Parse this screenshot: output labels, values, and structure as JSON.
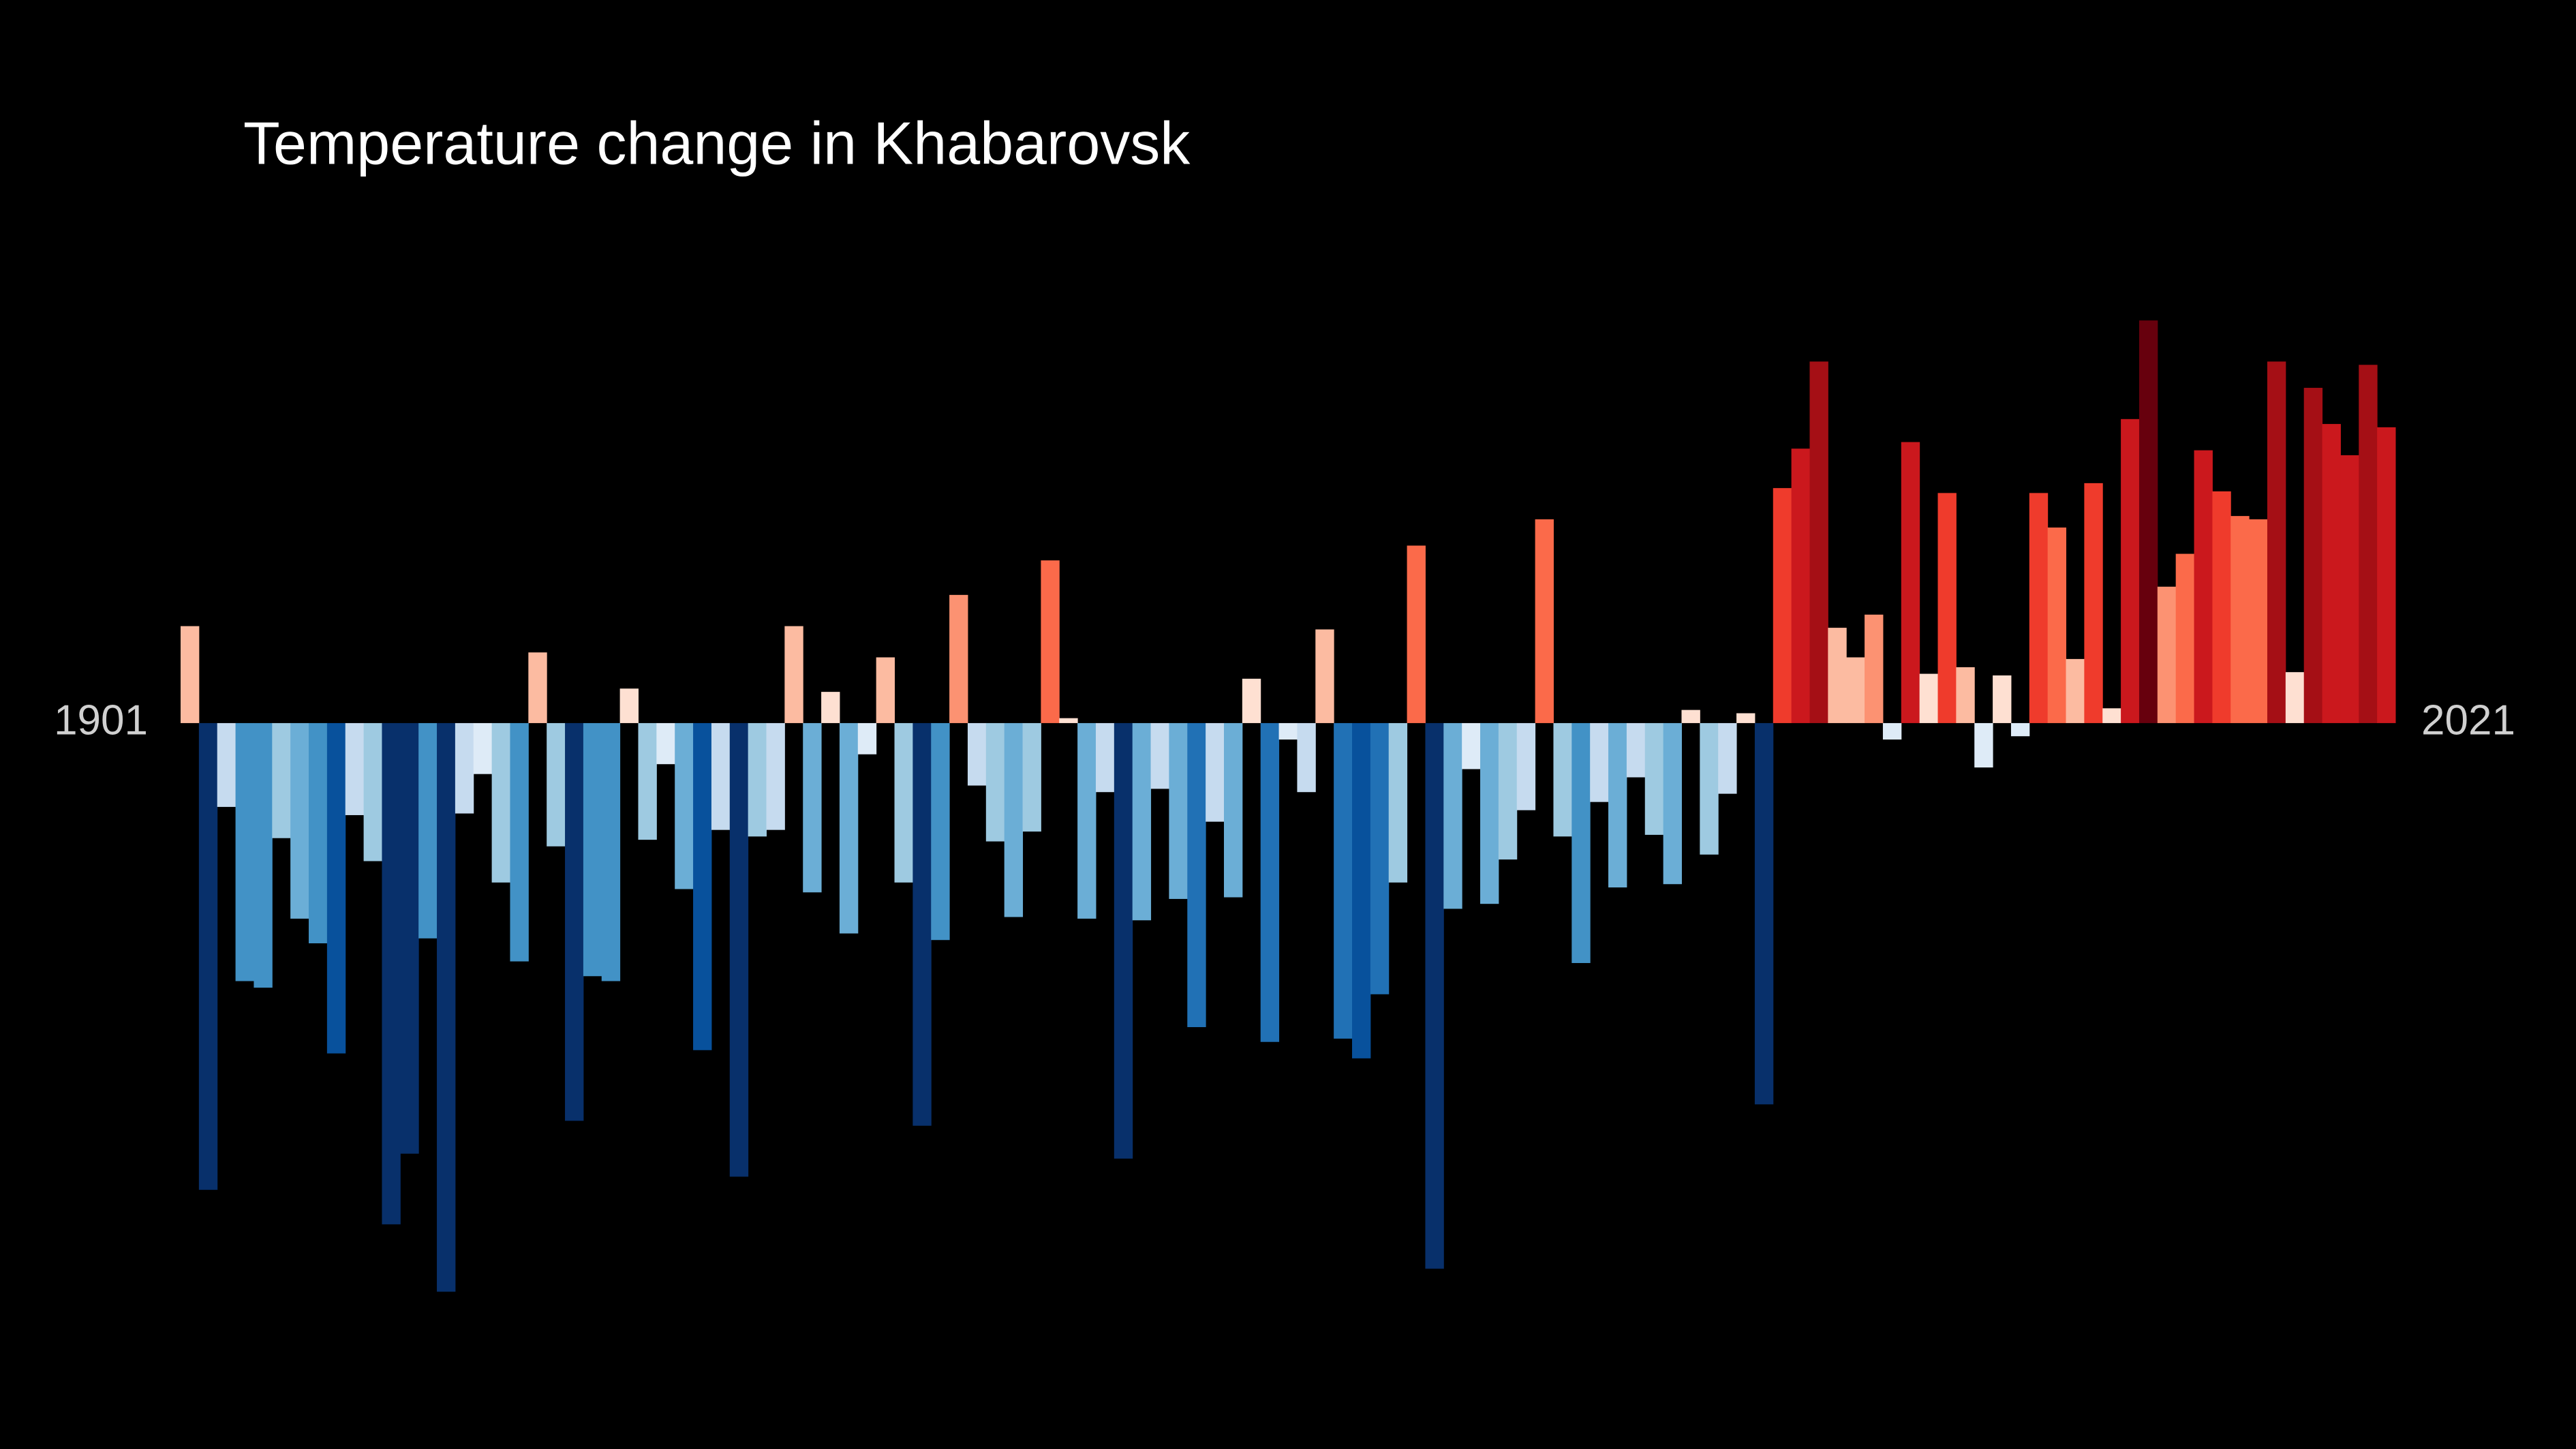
{
  "chart_data": {
    "type": "bar",
    "title": "Temperature change in Khabarovsk",
    "categories": [
      "1901",
      null,
      null,
      null,
      null,
      null,
      null,
      null,
      null,
      null,
      null,
      null,
      null,
      null,
      null,
      null,
      null,
      null,
      null,
      null,
      null,
      null,
      null,
      null,
      null,
      null,
      null,
      null,
      null,
      null,
      null,
      null,
      null,
      null,
      null,
      null,
      null,
      null,
      null,
      null,
      null,
      null,
      null,
      null,
      null,
      null,
      null,
      null,
      null,
      null,
      null,
      null,
      null,
      null,
      null,
      null,
      null,
      null,
      null,
      null,
      null,
      null,
      null,
      null,
      null,
      null,
      null,
      null,
      null,
      null,
      null,
      null,
      null,
      null,
      null,
      null,
      null,
      null,
      null,
      null,
      null,
      null,
      null,
      null,
      null,
      null,
      null,
      null,
      null,
      null,
      null,
      null,
      null,
      null,
      null,
      null,
      null,
      null,
      null,
      null,
      null,
      null,
      null,
      null,
      null,
      null,
      null,
      null,
      null,
      null,
      null,
      null,
      null,
      null,
      null,
      null,
      null,
      null,
      null,
      null,
      "2021"
    ],
    "values": [
      0.59,
      -2.84,
      -0.51,
      -1.57,
      -1.61,
      -0.7,
      -1.19,
      -1.34,
      -2.01,
      -0.56,
      -0.84,
      -3.05,
      -2.62,
      -1.31,
      -3.46,
      -0.55,
      -0.31,
      -0.97,
      -1.45,
      0.43,
      -0.75,
      -2.42,
      -1.54,
      -1.57,
      0.21,
      -0.71,
      -0.25,
      -1.01,
      -1.99,
      -0.65,
      -2.76,
      -0.69,
      -0.65,
      0.59,
      -1.03,
      0.19,
      -1.28,
      -0.19,
      0.4,
      -0.97,
      -2.45,
      -1.32,
      0.78,
      -0.38,
      -0.72,
      -1.18,
      -0.66,
      0.99,
      0.03,
      -1.19,
      -0.42,
      -2.65,
      -1.2,
      -0.4,
      -1.07,
      -1.85,
      -0.6,
      -1.06,
      0.27,
      -1.94,
      -0.1,
      -0.42,
      0.57,
      -1.92,
      -2.04,
      -1.65,
      -0.97,
      1.08,
      -3.32,
      -1.13,
      -0.28,
      -1.1,
      -0.83,
      -0.53,
      1.24,
      -0.69,
      -1.46,
      -0.48,
      -1.0,
      -0.33,
      -0.68,
      -0.98,
      0.08,
      -0.8,
      -0.43,
      0.06,
      -2.32,
      1.43,
      1.67,
      2.2,
      0.58,
      0.4,
      0.66,
      -0.1,
      1.71,
      0.3,
      1.4,
      0.34,
      -0.27,
      0.29,
      -0.08,
      1.4,
      1.19,
      0.39,
      1.46,
      0.09,
      1.85,
      2.45,
      0.83,
      1.03,
      1.66,
      1.41,
      1.26,
      1.24,
      2.2,
      0.31,
      2.04,
      1.82,
      1.63,
      2.18,
      1.8
    ],
    "colormap": [
      "#08306b",
      "#08519c",
      "#2171b5",
      "#4292c6",
      "#6baed6",
      "#9ecae1",
      "#c6dbef",
      "#deebf7",
      "#fee0d2",
      "#fcbba1",
      "#fc9272",
      "#fb6a4a",
      "#ef3b2c",
      "#cb181d",
      "#a50f15",
      "#67000d"
    ],
    "ylim": [
      -3.6,
      2.6
    ],
    "grid": false
  }
}
